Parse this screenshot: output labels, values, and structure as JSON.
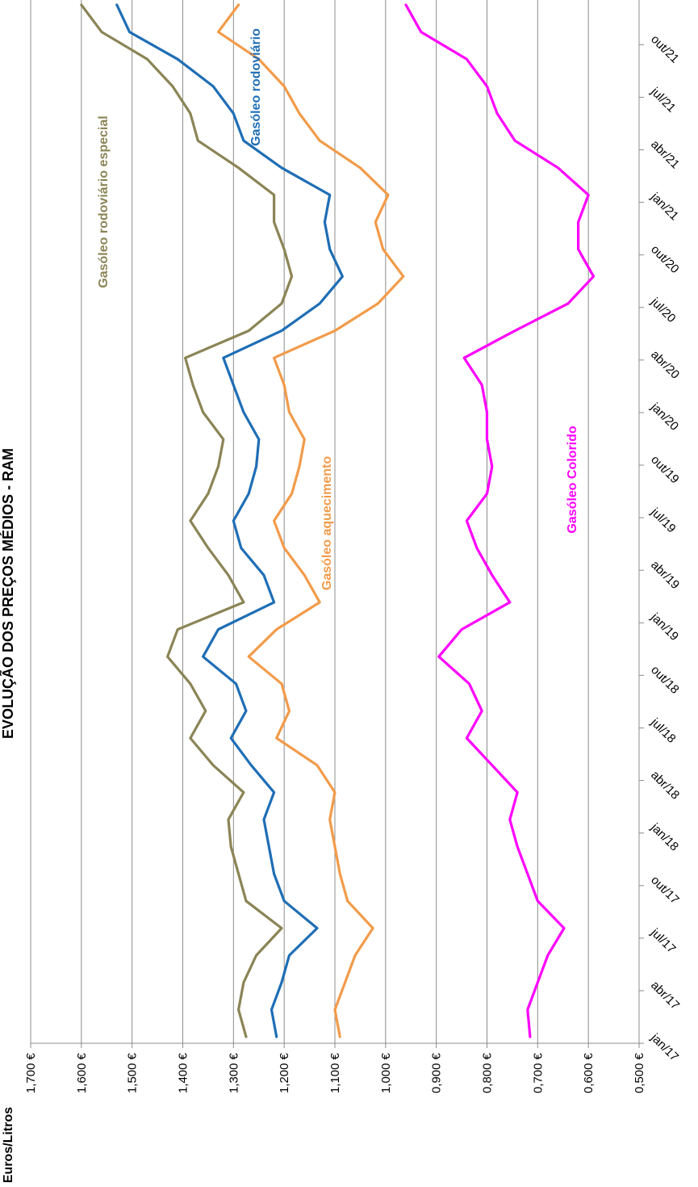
{
  "chart_data": {
    "type": "line",
    "title": "EVOLUÇÃO DOS PREÇOS MÉDIOS  - RAM",
    "ylabel": "Euros/Litros",
    "xlabel": "",
    "ylim": [
      0.5,
      1.7
    ],
    "y_ticks": [
      "0,500 €",
      "0,600 €",
      "0,700 €",
      "0,800 €",
      "0,900 €",
      "1,000 €",
      "1,100 €",
      "1,200 €",
      "1,300 €",
      "1,400 €",
      "1,500 €",
      "1,600 €",
      "1,700 €"
    ],
    "x_ticks": [
      "jan/17",
      "abr/17",
      "jul/17",
      "out/17",
      "jan/18",
      "abr/18",
      "jul/18",
      "out/18",
      "jan/19",
      "abr/19",
      "jul/19",
      "out/19",
      "jan/20",
      "abr/20",
      "jul/20",
      "out/20",
      "jan/21",
      "abr/21",
      "jul/21",
      "out/21"
    ],
    "grid": true,
    "orientation": "rotated 90° clockwise",
    "series": [
      {
        "name": "Gasóleo rodoviário especial",
        "color": "#8B8456",
        "values": [
          1.275,
          1.29,
          1.28,
          1.255,
          1.205,
          1.275,
          1.29,
          1.305,
          1.31,
          1.28,
          1.34,
          1.385,
          1.355,
          1.385,
          1.43,
          1.41,
          1.28,
          1.31,
          1.35,
          1.385,
          1.35,
          1.33,
          1.32,
          1.36,
          1.38,
          1.395,
          1.27,
          1.205,
          1.185,
          1.2,
          1.22,
          1.22,
          1.29,
          1.37,
          1.385,
          1.42,
          1.47,
          1.56,
          1.6
        ]
      },
      {
        "name": "Gasóleo rodoviário",
        "color": "#1F6EB5",
        "values": [
          1.215,
          1.225,
          1.205,
          1.19,
          1.135,
          1.2,
          1.22,
          1.23,
          1.24,
          1.22,
          1.265,
          1.305,
          1.275,
          1.295,
          1.36,
          1.33,
          1.22,
          1.24,
          1.285,
          1.3,
          1.27,
          1.255,
          1.25,
          1.28,
          1.3,
          1.32,
          1.205,
          1.13,
          1.085,
          1.11,
          1.12,
          1.11,
          1.205,
          1.28,
          1.3,
          1.34,
          1.41,
          1.505,
          1.53
        ]
      },
      {
        "name": "Gasóleo aquecimento",
        "color": "#F29B4A",
        "values": [
          1.09,
          1.1,
          1.08,
          1.06,
          1.025,
          1.075,
          1.09,
          1.1,
          1.11,
          1.1,
          1.135,
          1.215,
          1.19,
          1.205,
          1.27,
          1.215,
          1.13,
          1.16,
          1.2,
          1.22,
          1.185,
          1.17,
          1.16,
          1.19,
          1.2,
          1.22,
          1.1,
          1.015,
          0.965,
          1.005,
          1.02,
          0.995,
          1.05,
          1.13,
          1.17,
          1.2,
          1.25,
          1.33,
          1.29
        ]
      },
      {
        "name": "Gasóleo Colorido",
        "color": "#FF00FF",
        "values": [
          0.715,
          0.72,
          0.7,
          0.68,
          0.648,
          0.7,
          0.72,
          0.74,
          0.755,
          0.74,
          0.79,
          0.84,
          0.81,
          0.835,
          0.895,
          0.85,
          0.755,
          0.79,
          0.82,
          0.84,
          0.8,
          0.79,
          0.8,
          0.8,
          0.81,
          0.845,
          0.745,
          0.64,
          0.59,
          0.62,
          0.62,
          0.6,
          0.66,
          0.745,
          0.78,
          0.8,
          0.84,
          0.93,
          0.96
        ]
      }
    ]
  }
}
